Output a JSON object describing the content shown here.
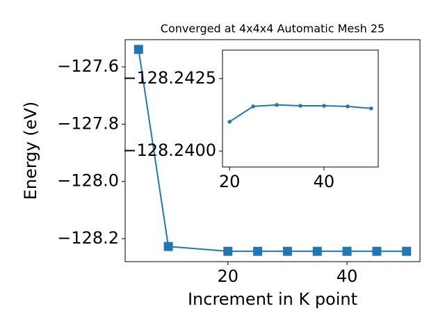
{
  "chart_data": [
    {
      "type": "line",
      "title": "Converged at 4x4x4 Automatic Mesh 25",
      "x_label": "Increment in K point",
      "y_label": "Energy (eV)",
      "x": [
        5,
        10,
        20,
        25,
        30,
        35,
        40,
        45,
        50
      ],
      "series": [
        {
          "color": "#1f77b4",
          "marker": "square",
          "values": [
            -127.539,
            -128.227,
            -128.244,
            -128.244,
            -128.244,
            -128.244,
            -128.244,
            -128.244,
            -128.244
          ]
        }
      ],
      "xlim": [
        2.75,
        52.25
      ],
      "ylim": [
        -128.28,
        -127.505
      ],
      "xticks": [
        20,
        40
      ],
      "yticks": [
        {
          "value": -127.6,
          "label": "−127.6"
        },
        {
          "value": -127.8,
          "label": "−127.8"
        },
        {
          "value": -128.0,
          "label": "−128.0"
        },
        {
          "value": -128.2,
          "label": "−128.2"
        }
      ]
    },
    {
      "type": "line",
      "x": [
        20,
        25,
        30,
        35,
        40,
        45,
        50
      ],
      "series": [
        {
          "color": "#1f77b4",
          "marker": "circle",
          "values": [
            -128.24101,
            -128.24154,
            -128.24159,
            -128.24156,
            -128.24156,
            -128.24154,
            -128.24147
          ]
        }
      ],
      "xlim": [
        18.5,
        51.5
      ],
      "ylim": [
        -128.23945,
        -128.24348
      ],
      "xticks": [
        20,
        40
      ],
      "yticks": [
        {
          "value": -128.2425,
          "label": "−128.2425"
        },
        {
          "value": -128.24,
          "label": "−128.2400"
        }
      ]
    }
  ]
}
